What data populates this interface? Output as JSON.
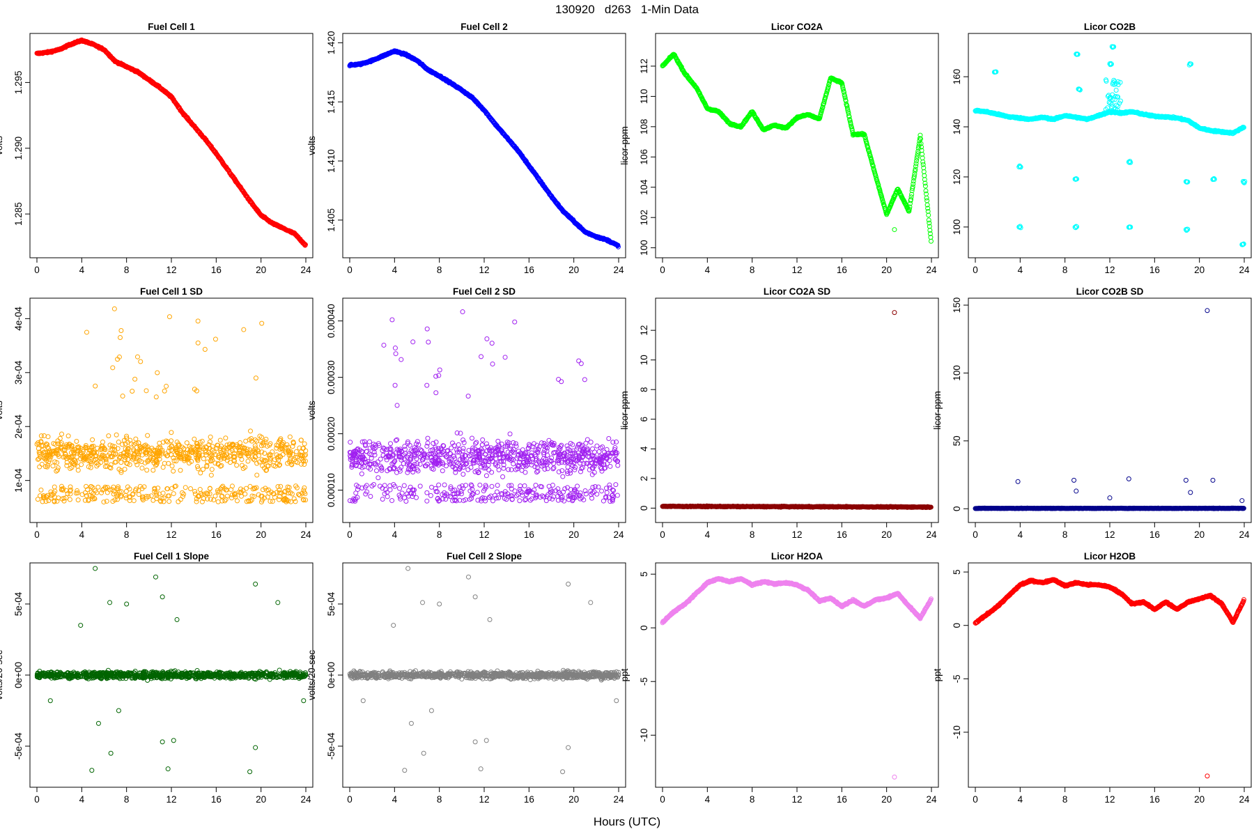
{
  "figure": {
    "title": "130920   d263   1-Min Data",
    "xlabel": "Hours (UTC)"
  },
  "chart_data": [
    {
      "type": "scatter",
      "title": "Fuel Cell 1",
      "ylabel": "volts",
      "color": "#ff0000",
      "xlim": [
        0,
        24
      ],
      "ylim": [
        1.2822,
        1.2982
      ],
      "yticks": [
        1.285,
        1.29,
        1.295
      ],
      "ytick_labels": [
        "1.285",
        "1.290",
        "1.295"
      ],
      "series": [
        {
          "x": [
            0,
            1,
            2,
            3,
            4,
            5,
            6,
            7,
            8,
            9,
            10,
            11,
            12,
            13,
            14,
            15,
            16,
            17,
            18,
            19,
            20,
            21,
            22,
            23,
            24
          ],
          "values": [
            1.2972,
            1.2973,
            1.2975,
            1.2979,
            1.2982,
            1.2979,
            1.2975,
            1.2966,
            1.2962,
            1.2958,
            1.2952,
            1.2946,
            1.2939,
            1.2927,
            1.2917,
            1.2907,
            1.2896,
            1.2884,
            1.2872,
            1.286,
            1.2849,
            1.2843,
            1.2839,
            1.2835,
            1.2826
          ]
        }
      ]
    },
    {
      "type": "scatter",
      "title": "Fuel Cell 2",
      "ylabel": "volts",
      "color": "#0000ff",
      "xlim": [
        0,
        24
      ],
      "ylim": [
        1.4024,
        1.4202
      ],
      "yticks": [
        1.405,
        1.41,
        1.415,
        1.42
      ],
      "ytick_labels": [
        "1.405",
        "1.410",
        "1.415",
        "1.420"
      ],
      "series": [
        {
          "x": [
            0,
            1,
            2,
            3,
            4,
            5,
            6,
            7,
            8,
            9,
            10,
            11,
            12,
            13,
            14,
            15,
            16,
            17,
            18,
            19,
            20,
            21,
            22,
            23,
            24
          ],
          "values": [
            1.4181,
            1.4182,
            1.4185,
            1.4189,
            1.4193,
            1.419,
            1.4185,
            1.4177,
            1.4172,
            1.4166,
            1.416,
            1.4153,
            1.4143,
            1.4131,
            1.412,
            1.4109,
            1.4096,
            1.4083,
            1.407,
            1.4058,
            1.4049,
            1.404,
            1.4036,
            1.4033,
            1.4028
          ]
        }
      ]
    },
    {
      "type": "scatter",
      "title": "Licor CO2A",
      "ylabel": "licor-ppm",
      "color": "#00ff00",
      "xlim": [
        0,
        24
      ],
      "ylim": [
        99.8,
        113.7
      ],
      "yticks": [
        100,
        102,
        104,
        106,
        108,
        110,
        112
      ],
      "ytick_labels": [
        "100",
        "102",
        "104",
        "106",
        "108",
        "110",
        "112"
      ],
      "series": [
        {
          "x": [
            0,
            1,
            2,
            3,
            4,
            5,
            6,
            7,
            8,
            9,
            10,
            11,
            12,
            13,
            14,
            15,
            16,
            17,
            18,
            19,
            20,
            21,
            22,
            23,
            24
          ],
          "values": [
            112.0,
            112.8,
            111.5,
            110.6,
            109.2,
            109.0,
            108.2,
            108.0,
            109.0,
            107.8,
            108.1,
            107.9,
            108.6,
            108.8,
            108.5,
            111.2,
            110.9,
            107.5,
            107.5,
            104.8,
            102.2,
            103.9,
            102.4,
            107.4,
            100.2
          ]
        }
      ]
    },
    {
      "type": "scatter",
      "title": "Licor CO2B",
      "ylabel": "",
      "color": "#00ffff",
      "xlim": [
        0,
        24
      ],
      "ylim": [
        90.5,
        174.5
      ],
      "yticks": [
        100,
        120,
        140,
        160
      ],
      "ytick_labels": [
        "100",
        "120",
        "140",
        "160"
      ],
      "series": [
        {
          "x": [
            0,
            1,
            2,
            3,
            4,
            5,
            6,
            7,
            8,
            9,
            10,
            11,
            12,
            13,
            14,
            15,
            16,
            17,
            18,
            19,
            20,
            21,
            22,
            23,
            24
          ],
          "values": [
            146.5,
            146.0,
            145.0,
            144.0,
            143.5,
            143.0,
            143.8,
            143.0,
            144.5,
            143.8,
            143.0,
            144.5,
            146.0,
            145.5,
            146.0,
            145.0,
            144.2,
            144.0,
            143.5,
            142.5,
            139.5,
            138.5,
            138.0,
            137.5,
            140.0
          ]
        }
      ]
    },
    {
      "type": "scatter",
      "title": "Fuel Cell 1 SD",
      "ylabel": "volts",
      "color": "#ffa500",
      "xlim": [
        0,
        24
      ],
      "ylim": [
        3.5e-05,
        0.000425
      ],
      "yticks": [
        0.0001,
        0.0002,
        0.0003,
        0.0004
      ],
      "ytick_labels": [
        "1e-04",
        "2e-04",
        "3e-04",
        "4e-04"
      ],
      "series": [
        {
          "x": [
            0,
            24
          ],
          "values": [
            0.00015,
            0.00015
          ]
        }
      ]
    },
    {
      "type": "scatter",
      "title": "Fuel Cell 2 SD",
      "ylabel": "volts",
      "color": "#a020f0",
      "xlim": [
        0,
        24
      ],
      "ylim": [
        5.5e-05,
        0.000428
      ],
      "yticks": [
        0.0001,
        0.0002,
        0.0003,
        0.0004
      ],
      "ytick_labels": [
        "0.00010",
        "0.00020",
        "0.00030",
        "0.00040"
      ],
      "series": [
        {
          "x": [
            0,
            24
          ],
          "values": [
            0.00016,
            0.00016
          ]
        }
      ]
    },
    {
      "type": "scatter",
      "title": "Licor CO2A SD",
      "ylabel": "licor-ppm",
      "color": "#8b0000",
      "xlim": [
        0,
        24
      ],
      "ylim": [
        -0.5,
        13.7
      ],
      "yticks": [
        0,
        2,
        4,
        6,
        8,
        10,
        12
      ],
      "ytick_labels": [
        "0",
        "2",
        "4",
        "6",
        "8",
        "10",
        "12"
      ],
      "series": [
        {
          "x": [
            0,
            24
          ],
          "values": [
            0.15,
            0.08
          ]
        }
      ]
    },
    {
      "type": "scatter",
      "title": "Licor CO2B SD",
      "ylabel": "licor-ppm",
      "color": "#00008b",
      "xlim": [
        0,
        24
      ],
      "ylim": [
        -5,
        150
      ],
      "yticks": [
        0,
        50,
        100,
        150
      ],
      "ytick_labels": [
        "0",
        "50",
        "100",
        "150"
      ],
      "series": [
        {
          "x": [
            0,
            24
          ],
          "values": [
            0.3,
            0.3
          ]
        }
      ]
    },
    {
      "type": "scatter",
      "title": "Fuel Cell 1 Slope",
      "ylabel": "volts/20-sec",
      "color": "#006400",
      "xlim": [
        0,
        24
      ],
      "ylim": [
        -0.00074,
        0.00074
      ],
      "yticks": [
        -0.0005,
        0,
        0.0005
      ],
      "ytick_labels": [
        "-5e-04",
        "0e+00",
        "5e-04"
      ],
      "series": [
        {
          "x": [
            0,
            24
          ],
          "values": [
            0,
            0
          ]
        }
      ]
    },
    {
      "type": "scatter",
      "title": "Fuel Cell 2 Slope",
      "ylabel": "volts/20-sec",
      "color": "#808080",
      "xlim": [
        0,
        24
      ],
      "ylim": [
        -0.00074,
        0.00074
      ],
      "yticks": [
        -0.0005,
        0,
        0.0005
      ],
      "ytick_labels": [
        "-5e-04",
        "0e+00",
        "5e-04"
      ],
      "series": [
        {
          "x": [
            0,
            24
          ],
          "values": [
            0,
            0
          ]
        }
      ]
    },
    {
      "type": "scatter",
      "title": "Licor H2OA",
      "ylabel": "ppt",
      "color": "#ee82ee",
      "xlim": [
        0,
        24
      ],
      "ylim": [
        -14.2,
        5.4
      ],
      "yticks": [
        -10,
        -5,
        0,
        5
      ],
      "ytick_labels": [
        "-10",
        "-5",
        "0",
        "5"
      ],
      "series": [
        {
          "x": [
            0,
            1,
            2,
            3,
            4,
            5,
            6,
            7,
            8,
            9,
            10,
            11,
            12,
            13,
            14,
            15,
            16,
            17,
            18,
            19,
            20,
            21,
            22,
            23,
            24
          ],
          "values": [
            0.5,
            1.5,
            2.2,
            3.2,
            4.2,
            4.6,
            4.3,
            4.6,
            4.0,
            4.3,
            4.1,
            4.2,
            4.0,
            3.5,
            2.5,
            2.8,
            2.0,
            2.6,
            2.0,
            2.6,
            2.8,
            3.2,
            2.0,
            0.9,
            2.7
          ]
        }
      ]
    },
    {
      "type": "scatter",
      "title": "Licor H2OB",
      "ylabel": "ppt",
      "color": "#ff0000",
      "xlim": [
        0,
        24
      ],
      "ylim": [
        -14.5,
        5.2
      ],
      "yticks": [
        -10,
        -5,
        0,
        5
      ],
      "ytick_labels": [
        "-10",
        "-5",
        "0",
        "5"
      ],
      "series": [
        {
          "x": [
            0,
            1,
            2,
            3,
            4,
            5,
            6,
            7,
            8,
            9,
            10,
            11,
            12,
            13,
            14,
            15,
            16,
            17,
            18,
            19,
            20,
            21,
            22,
            23,
            24
          ],
          "values": [
            0.2,
            1.0,
            1.8,
            2.8,
            3.8,
            4.2,
            4.0,
            4.3,
            3.7,
            4.0,
            3.8,
            3.8,
            3.6,
            3.0,
            2.0,
            2.2,
            1.5,
            2.2,
            1.5,
            2.2,
            2.5,
            2.8,
            2.0,
            0.3,
            2.4
          ]
        }
      ]
    }
  ]
}
